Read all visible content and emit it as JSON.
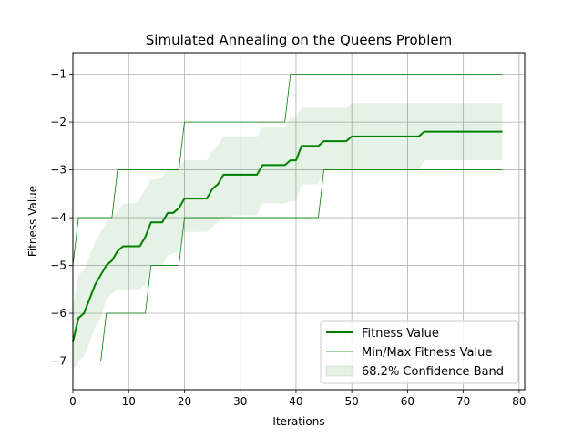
{
  "chart_data": {
    "type": "line",
    "title": "Simulated Annealing on the Queens Problem",
    "xlabel": "Iterations",
    "ylabel": "Fitness Value",
    "xlim": [
      0,
      81
    ],
    "ylim": [
      -7.6,
      -0.55
    ],
    "xticks": [
      0,
      10,
      20,
      30,
      40,
      50,
      60,
      70,
      80
    ],
    "yticks": [
      -7,
      -6,
      -5,
      -4,
      -3,
      -2,
      -1
    ],
    "ytick_labels": [
      "−7",
      "−6",
      "−5",
      "−4",
      "−3",
      "−2",
      "−1"
    ],
    "grid": true,
    "legend_position": "lower-right",
    "colors": {
      "line": "#008000",
      "band": "#008000"
    },
    "x": [
      0,
      1,
      2,
      3,
      4,
      5,
      6,
      7,
      8,
      9,
      10,
      11,
      12,
      13,
      14,
      15,
      16,
      17,
      18,
      19,
      20,
      21,
      22,
      23,
      24,
      25,
      26,
      27,
      28,
      29,
      30,
      31,
      32,
      33,
      34,
      35,
      36,
      37,
      38,
      39,
      40,
      41,
      42,
      43,
      44,
      45,
      46,
      47,
      48,
      49,
      50,
      51,
      52,
      53,
      54,
      55,
      56,
      57,
      58,
      59,
      60,
      61,
      62,
      63,
      64,
      65,
      66,
      67,
      68,
      69,
      70,
      71,
      72,
      73,
      74,
      75,
      76,
      77
    ],
    "series": [
      {
        "name": "Fitness Value",
        "values": [
          -6.6,
          -6.1,
          -6.0,
          -5.7,
          -5.4,
          -5.2,
          -5.0,
          -4.9,
          -4.7,
          -4.6,
          -4.6,
          -4.6,
          -4.6,
          -4.4,
          -4.1,
          -4.1,
          -4.1,
          -3.9,
          -3.9,
          -3.8,
          -3.6,
          -3.6,
          -3.6,
          -3.6,
          -3.6,
          -3.4,
          -3.3,
          -3.1,
          -3.1,
          -3.1,
          -3.1,
          -3.1,
          -3.1,
          -3.1,
          -2.9,
          -2.9,
          -2.9,
          -2.9,
          -2.9,
          -2.8,
          -2.8,
          -2.5,
          -2.5,
          -2.5,
          -2.5,
          -2.4,
          -2.4,
          -2.4,
          -2.4,
          -2.4,
          -2.3,
          -2.3,
          -2.3,
          -2.3,
          -2.3,
          -2.3,
          -2.3,
          -2.3,
          -2.3,
          -2.3,
          -2.3,
          -2.3,
          -2.3,
          -2.2,
          -2.2,
          -2.2,
          -2.2,
          -2.2,
          -2.2,
          -2.2,
          -2.2,
          -2.2,
          -2.2,
          -2.2,
          -2.2,
          -2.2,
          -2.2,
          -2.2
        ]
      },
      {
        "name": "Min/Max Fitness Value",
        "max": [
          -5,
          -4,
          -4,
          -4,
          -4,
          -4,
          -4,
          -4,
          -3,
          -3,
          -3,
          -3,
          -3,
          -3,
          -3,
          -3,
          -3,
          -3,
          -3,
          -3,
          -2,
          -2,
          -2,
          -2,
          -2,
          -2,
          -2,
          -2,
          -2,
          -2,
          -2,
          -2,
          -2,
          -2,
          -2,
          -2,
          -2,
          -2,
          -2,
          -1,
          -1,
          -1,
          -1,
          -1,
          -1,
          -1,
          -1,
          -1,
          -1,
          -1,
          -1,
          -1,
          -1,
          -1,
          -1,
          -1,
          -1,
          -1,
          -1,
          -1,
          -1,
          -1,
          -1,
          -1,
          -1,
          -1,
          -1,
          -1,
          -1,
          -1,
          -1,
          -1,
          -1,
          -1,
          -1,
          -1,
          -1,
          -1
        ],
        "min": [
          -7,
          -7,
          -7,
          -7,
          -7,
          -7,
          -6,
          -6,
          -6,
          -6,
          -6,
          -6,
          -6,
          -6,
          -5,
          -5,
          -5,
          -5,
          -5,
          -5,
          -4,
          -4,
          -4,
          -4,
          -4,
          -4,
          -4,
          -4,
          -4,
          -4,
          -4,
          -4,
          -4,
          -4,
          -4,
          -4,
          -4,
          -4,
          -4,
          -4,
          -4,
          -4,
          -4,
          -4,
          -4,
          -3,
          -3,
          -3,
          -3,
          -3,
          -3,
          -3,
          -3,
          -3,
          -3,
          -3,
          -3,
          -3,
          -3,
          -3,
          -3,
          -3,
          -3,
          -3,
          -3,
          -3,
          -3,
          -3,
          -3,
          -3,
          -3,
          -3,
          -3,
          -3,
          -3,
          -3,
          -3,
          -3
        ]
      },
      {
        "name": "68.2% Confidence Band",
        "upper": [
          -5.9,
          -5.2,
          -5.1,
          -4.8,
          -4.5,
          -4.3,
          -4.1,
          -4.0,
          -3.85,
          -3.7,
          -3.7,
          -3.7,
          -3.6,
          -3.4,
          -3.2,
          -3.2,
          -3.15,
          -3.0,
          -3.0,
          -2.95,
          -2.8,
          -2.8,
          -2.8,
          -2.8,
          -2.8,
          -2.6,
          -2.5,
          -2.3,
          -2.3,
          -2.3,
          -2.3,
          -2.3,
          -2.3,
          -2.3,
          -2.1,
          -2.1,
          -2.1,
          -2.1,
          -2.1,
          -1.9,
          -1.9,
          -1.7,
          -1.7,
          -1.7,
          -1.7,
          -1.7,
          -1.7,
          -1.7,
          -1.7,
          -1.7,
          -1.6,
          -1.6,
          -1.6,
          -1.6,
          -1.6,
          -1.6,
          -1.6,
          -1.6,
          -1.6,
          -1.6,
          -1.6,
          -1.6,
          -1.6,
          -1.6,
          -1.6,
          -1.6,
          -1.6,
          -1.6,
          -1.6,
          -1.6,
          -1.6,
          -1.6,
          -1.6,
          -1.6,
          -1.6,
          -1.6,
          -1.6,
          -1.6
        ],
        "lower": [
          -7.2,
          -7.0,
          -6.9,
          -6.6,
          -6.3,
          -6.1,
          -5.7,
          -5.6,
          -5.5,
          -5.5,
          -5.5,
          -5.5,
          -5.5,
          -5.4,
          -5.0,
          -5.0,
          -5.0,
          -4.8,
          -4.75,
          -4.7,
          -4.3,
          -4.3,
          -4.3,
          -4.3,
          -4.3,
          -4.2,
          -4.1,
          -4.0,
          -4.0,
          -3.95,
          -3.95,
          -3.95,
          -3.95,
          -3.95,
          -3.7,
          -3.7,
          -3.7,
          -3.7,
          -3.7,
          -3.65,
          -3.65,
          -3.3,
          -3.3,
          -3.3,
          -3.3,
          -3.0,
          -3.0,
          -3.0,
          -3.0,
          -3.0,
          -3.0,
          -3.0,
          -3.0,
          -3.0,
          -3.0,
          -3.0,
          -3.0,
          -3.0,
          -3.0,
          -3.0,
          -3.0,
          -3.0,
          -3.0,
          -2.8,
          -2.8,
          -2.8,
          -2.8,
          -2.8,
          -2.8,
          -2.8,
          -2.8,
          -2.8,
          -2.8,
          -2.8,
          -2.8,
          -2.8,
          -2.8,
          -2.8
        ]
      }
    ]
  }
}
